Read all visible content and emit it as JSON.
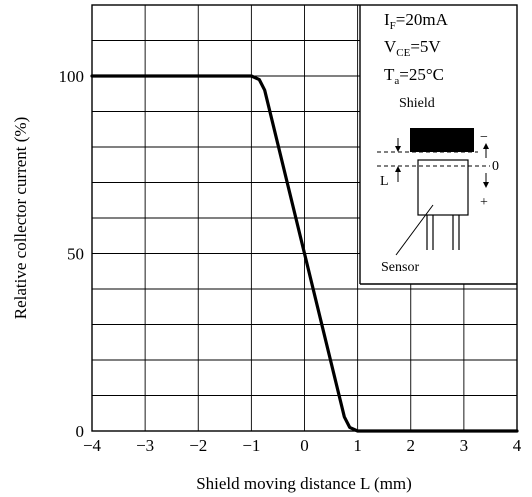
{
  "chart_data": {
    "type": "line",
    "xlabel": "Shield moving distance L (mm)",
    "ylabel": "Relative collector current (%)",
    "xlim": [
      -4,
      4
    ],
    "ylim": [
      0,
      120
    ],
    "x_ticks": [
      -4,
      -3,
      -2,
      -1,
      0,
      1,
      2,
      3,
      4
    ],
    "x_tick_labels": [
      "−4",
      "−3",
      "−2",
      "−1",
      "0",
      "1",
      "2",
      "3",
      "4"
    ],
    "y_ticks": [
      0,
      50,
      100
    ],
    "y_tick_labels": [
      "0",
      "50",
      "100"
    ],
    "grid": true,
    "series": [
      {
        "x": [
          -4,
          -1.0,
          -0.85,
          -0.75,
          0.0,
          0.75,
          0.85,
          1.0,
          4
        ],
        "y": [
          100,
          100,
          99,
          96,
          50,
          4,
          1,
          0,
          0
        ]
      }
    ],
    "conditions": {
      "if_main": "I",
      "if_sub": "F",
      "if_value": "=20mA",
      "vce_main": "V",
      "vce_sub": "CE",
      "vce_value": "=5V",
      "ta_main": "T",
      "ta_sub": "a",
      "ta_value": "=25°C"
    },
    "inset": {
      "shield_label": "Shield",
      "sensor_label": "Sensor",
      "l_label": "L",
      "minus_label": "−",
      "zero_label": "0",
      "plus_label": "+"
    }
  }
}
